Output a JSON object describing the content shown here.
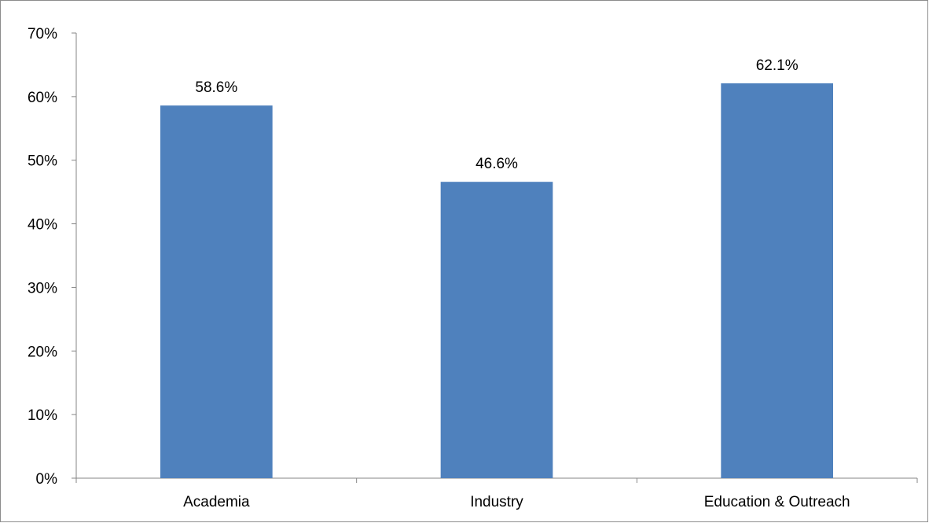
{
  "chart_data": {
    "type": "bar",
    "title": "",
    "xlabel": "",
    "ylabel": "",
    "categories": [
      "Academia",
      "Industry",
      "Education & Outreach"
    ],
    "values": [
      58.6,
      46.6,
      62.1
    ],
    "data_labels": [
      "58.6%",
      "46.6%",
      "62.1%"
    ],
    "ylim": [
      0,
      70
    ],
    "yticks": [
      0,
      10,
      20,
      30,
      40,
      50,
      60,
      70
    ],
    "ytick_labels": [
      "0%",
      "10%",
      "20%",
      "30%",
      "40%",
      "50%",
      "60%",
      "70%"
    ],
    "grid": false,
    "legend": "none",
    "bar_color": "#4f81bd"
  }
}
